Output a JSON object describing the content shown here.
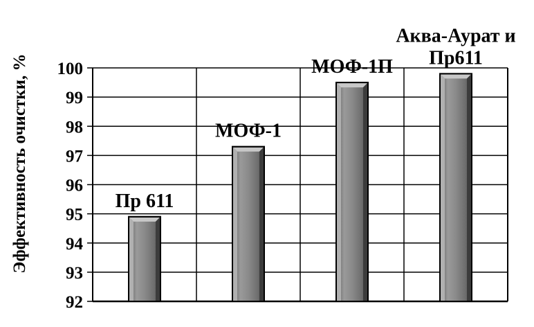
{
  "chart_data": {
    "type": "bar",
    "ylabel": "Эффективность очистки, %",
    "ylim": [
      92,
      100
    ],
    "yticks": [
      92,
      93,
      94,
      95,
      96,
      97,
      98,
      99,
      100
    ],
    "grid": true,
    "legend": "none",
    "bar_color": "#7f7f7f",
    "bars": [
      {
        "label_lines": [
          "Пр 611"
        ],
        "value": 94.9
      },
      {
        "label_lines": [
          "МОФ-1"
        ],
        "value": 97.3
      },
      {
        "label_lines": [
          "МОФ-1П"
        ],
        "value": 99.5
      },
      {
        "label_lines": [
          "Аква-Аурат и",
          "Пр611"
        ],
        "value": 99.8
      }
    ]
  }
}
